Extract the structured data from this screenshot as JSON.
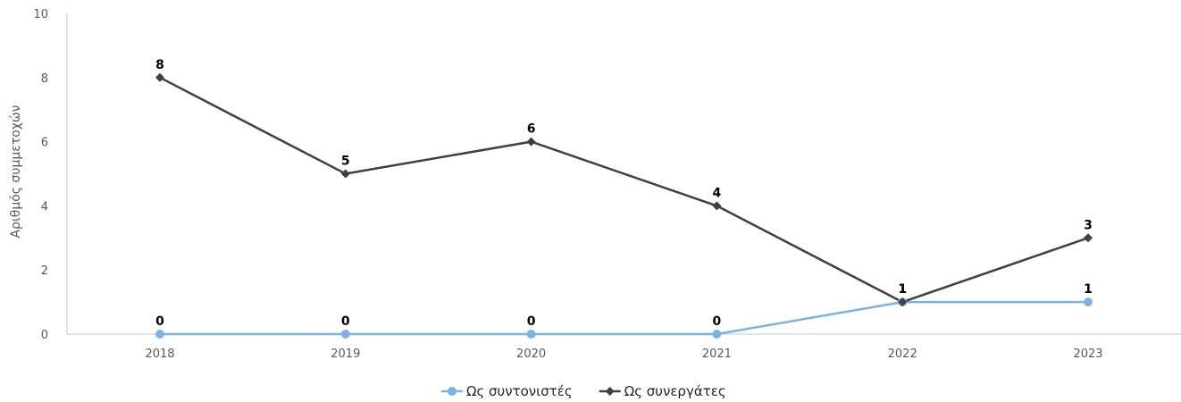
{
  "chart_data": {
    "type": "line",
    "title": "",
    "xlabel": "",
    "ylabel": "Αριθμός συμμετοχών",
    "categories": [
      "2018",
      "2019",
      "2020",
      "2021",
      "2022",
      "2023"
    ],
    "ylim": [
      0,
      10
    ],
    "yticks": [
      0,
      2,
      4,
      6,
      8,
      10
    ],
    "grid": false,
    "legend_position": "bottom",
    "series": [
      {
        "name": "Ως συντονιστές",
        "values": [
          0,
          0,
          0,
          0,
          1,
          1
        ],
        "data_labels": [
          "0",
          "0",
          "0",
          "0",
          "1",
          "1"
        ],
        "color": "#7EB2E4",
        "marker": "circle"
      },
      {
        "name": "Ως συνεργάτες",
        "values": [
          8,
          5,
          6,
          4,
          1,
          3
        ],
        "data_labels": [
          "8",
          "5",
          "6",
          "4",
          "1",
          "3"
        ],
        "color": "#404040",
        "marker": "diamond"
      }
    ]
  },
  "colors": {
    "axis": "#BFC9D6",
    "tick_text": "#595959",
    "data_label": "#000000"
  }
}
